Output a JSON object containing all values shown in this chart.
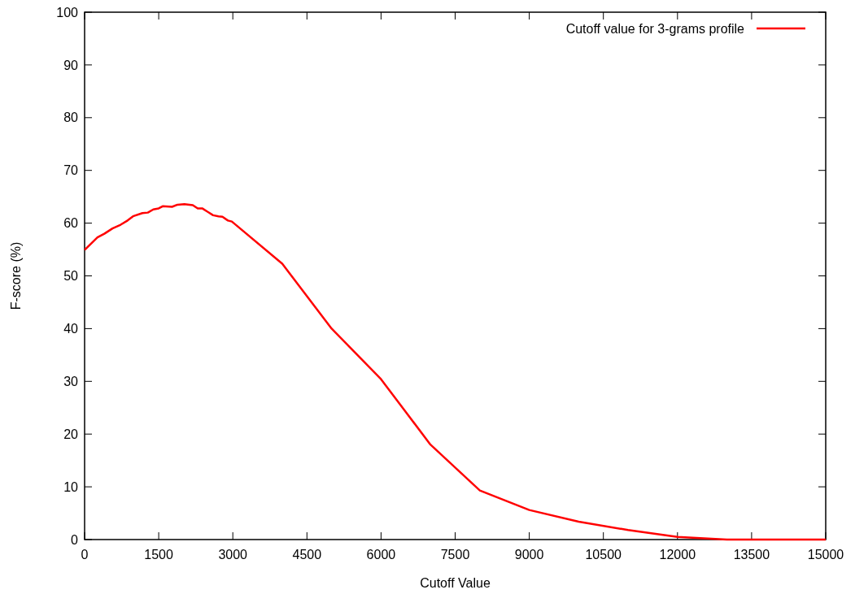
{
  "chart_data": {
    "type": "line",
    "xlabel": "Cutoff Value",
    "ylabel": "F-score (%)",
    "xlim": [
      0,
      15000
    ],
    "xticks": [
      0,
      1500,
      3000,
      4500,
      6000,
      7500,
      9000,
      10500,
      12000,
      13500,
      15000
    ],
    "ylim": [
      0,
      100
    ],
    "yticks": [
      0,
      10,
      20,
      30,
      40,
      50,
      60,
      70,
      80,
      90,
      100
    ],
    "legend": "top right",
    "series": [
      {
        "name": "Cutoff value for 3-grams profile",
        "color": "#ff0000",
        "x": [
          0,
          260,
          400,
          565,
          730,
          870,
          980,
          1170,
          1280,
          1390,
          1500,
          1580,
          1770,
          1880,
          2020,
          2190,
          2290,
          2380,
          2600,
          2710,
          2790,
          2900,
          2980,
          4000,
          5000,
          6000,
          7000,
          8000,
          9000,
          10000,
          11000,
          12000,
          13000,
          14000,
          15000
        ],
        "values": [
          54.9,
          57.3,
          58.0,
          59.0,
          59.7,
          60.5,
          61.3,
          61.9,
          62.0,
          62.6,
          62.8,
          63.2,
          63.1,
          63.5,
          63.6,
          63.4,
          62.8,
          62.8,
          61.5,
          61.3,
          61.2,
          60.5,
          60.3,
          52.3,
          40.0,
          30.4,
          18.0,
          9.3,
          5.6,
          3.4,
          1.8,
          0.5,
          0,
          0,
          0
        ]
      }
    ]
  }
}
